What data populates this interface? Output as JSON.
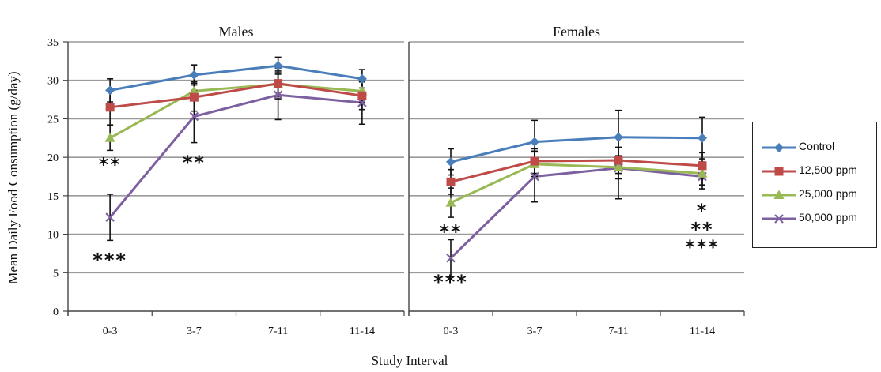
{
  "chart_data": {
    "type": "line",
    "ylabel": "Mean Daily Food Consumption (g/day)",
    "xlabel": "Study Interval",
    "ylim": [
      0,
      35
    ],
    "yticks": [
      0,
      5,
      10,
      15,
      20,
      25,
      30,
      35
    ],
    "categories": [
      "0-3",
      "3-7",
      "7-11",
      "11-14"
    ],
    "grid": true,
    "legend_position": "right",
    "series_meta": [
      {
        "name": "Control",
        "color": "#4a7ebb",
        "marker": "diamond"
      },
      {
        "name": "12,500 ppm",
        "color": "#be4b48",
        "marker": "square"
      },
      {
        "name": "25,000 ppm",
        "color": "#98b954",
        "marker": "triangle"
      },
      {
        "name": "50,000 ppm",
        "color": "#7d60a0",
        "marker": "x"
      }
    ],
    "panels": [
      {
        "title": "Males",
        "series": [
          {
            "name": "Control",
            "values": [
              28.7,
              30.7,
              31.9,
              30.2
            ],
            "errors": [
              1.5,
              1.3,
              1.1,
              1.2
            ]
          },
          {
            "name": "12,500 ppm",
            "values": [
              26.5,
              27.8,
              29.6,
              28.0
            ],
            "errors": [
              2.3,
              1.8,
              2.0,
              1.8
            ]
          },
          {
            "name": "25,000 ppm",
            "values": [
              22.5,
              28.6,
              29.5,
              28.6
            ],
            "errors": [
              1.6,
              1.2,
              1.6,
              1.5
            ]
          },
          {
            "name": "50,000 ppm",
            "values": [
              12.2,
              25.3,
              28.1,
              27.1
            ],
            "errors": [
              3.0,
              3.4,
              3.2,
              2.8
            ]
          }
        ],
        "annotations": [
          {
            "category": "0-3",
            "y": 18.2,
            "text": "**"
          },
          {
            "category": "0-3",
            "y": 5.8,
            "text": "***"
          },
          {
            "category": "3-7",
            "y": 18.5,
            "text": "**"
          }
        ]
      },
      {
        "title": "Females",
        "series": [
          {
            "name": "Control",
            "values": [
              19.4,
              22.0,
              22.6,
              22.5
            ],
            "errors": [
              1.7,
              2.8,
              3.5,
              2.7
            ]
          },
          {
            "name": "12,500 ppm",
            "values": [
              16.8,
              19.5,
              19.6,
              18.9
            ],
            "errors": [
              1.6,
              1.6,
              1.7,
              1.7
            ]
          },
          {
            "name": "25,000 ppm",
            "values": [
              14.1,
              19.1,
              18.7,
              17.9
            ],
            "errors": [
              1.9,
              1.6,
              1.5,
              1.5
            ]
          },
          {
            "name": "50,000 ppm",
            "values": [
              6.9,
              17.5,
              18.6,
              17.5
            ],
            "errors": [
              2.4,
              3.3,
              4.0,
              1.6
            ]
          }
        ],
        "annotations": [
          {
            "category": "0-3",
            "y": 9.5,
            "text": "**"
          },
          {
            "category": "0-3",
            "y": 3.0,
            "text": "***"
          },
          {
            "category": "11-14",
            "y": 12.2,
            "text": "*"
          },
          {
            "category": "11-14",
            "y": 9.8,
            "text": "**"
          },
          {
            "category": "11-14",
            "y": 7.5,
            "text": "***"
          }
        ]
      }
    ]
  }
}
